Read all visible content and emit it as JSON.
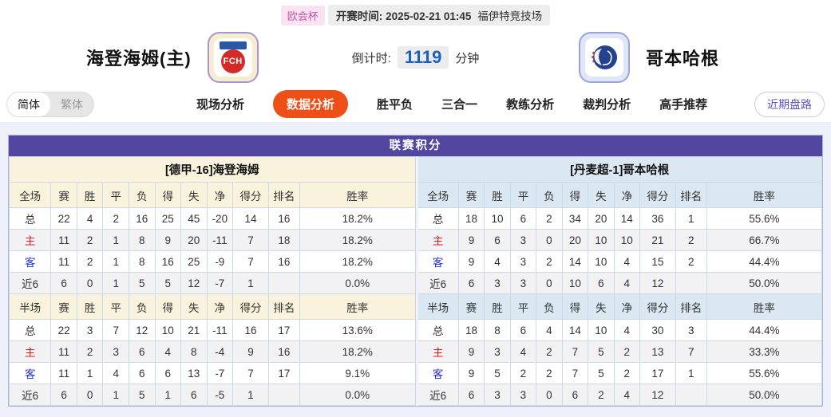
{
  "colors": {
    "title_bar_purple": "#5246a0",
    "active_tab_orange": "#ee4f16",
    "home_side_bg": "#f9f2dc",
    "away_side_bg": "#dbe7f2",
    "home_label_red": "#d42222",
    "away_label_blue": "#2233cc",
    "countdown_blue": "#1b5ec4",
    "competition_pink": "#c457a8",
    "page_bg": "#edf0f8"
  },
  "match_header": {
    "competition_badge": "欧会杯",
    "kickoff_label": "开赛时间:",
    "kickoff_datetime": "2025-02-21 01:45",
    "venue": "福伊特竞技场",
    "home_team": {
      "name": "海登海姆(主)",
      "crest_text": "FCH"
    },
    "away_team": {
      "name": "哥本哈根"
    },
    "countdown": {
      "label": "倒计时:",
      "value": "1119",
      "unit": "分钟"
    }
  },
  "nav": {
    "lang_toggle": {
      "simplified": "简体",
      "traditional": "繁体",
      "active": "简体"
    },
    "tabs": [
      {
        "label": "现场分析",
        "active": false
      },
      {
        "label": "数据分析",
        "active": true
      },
      {
        "label": "胜平负",
        "active": false
      },
      {
        "label": "三合一",
        "active": false
      },
      {
        "label": "教练分析",
        "active": false
      },
      {
        "label": "裁判分析",
        "active": false
      },
      {
        "label": "高手推荐",
        "active": false
      }
    ],
    "recent_trend_button": "近期盘路"
  },
  "league_table": {
    "title": "联赛积分",
    "columns_full": [
      "全场",
      "赛",
      "胜",
      "平",
      "负",
      "得",
      "失",
      "净",
      "得分",
      "排名",
      "胜率"
    ],
    "columns_half": [
      "半场",
      "赛",
      "胜",
      "平",
      "负",
      "得",
      "失",
      "净",
      "得分",
      "排名",
      "胜率"
    ],
    "home": {
      "team_label": "[德甲-16]海登海姆",
      "full_rows": [
        [
          "总",
          "22",
          "4",
          "2",
          "16",
          "25",
          "45",
          "-20",
          "14",
          "16",
          "18.2%"
        ],
        [
          "主",
          "11",
          "2",
          "1",
          "8",
          "9",
          "20",
          "-11",
          "7",
          "18",
          "18.2%"
        ],
        [
          "客",
          "11",
          "2",
          "1",
          "8",
          "16",
          "25",
          "-9",
          "7",
          "16",
          "18.2%"
        ],
        [
          "近6",
          "6",
          "0",
          "1",
          "5",
          "5",
          "12",
          "-7",
          "1",
          "",
          "0.0%"
        ]
      ],
      "half_rows": [
        [
          "总",
          "22",
          "3",
          "7",
          "12",
          "10",
          "21",
          "-11",
          "16",
          "17",
          "13.6%"
        ],
        [
          "主",
          "11",
          "2",
          "3",
          "6",
          "4",
          "8",
          "-4",
          "9",
          "16",
          "18.2%"
        ],
        [
          "客",
          "11",
          "1",
          "4",
          "6",
          "6",
          "13",
          "-7",
          "7",
          "17",
          "9.1%"
        ],
        [
          "近6",
          "6",
          "0",
          "1",
          "5",
          "1",
          "6",
          "-5",
          "1",
          "",
          "0.0%"
        ]
      ]
    },
    "away": {
      "team_label": "[丹麦超-1]哥本哈根",
      "full_rows": [
        [
          "总",
          "18",
          "10",
          "6",
          "2",
          "34",
          "20",
          "14",
          "36",
          "1",
          "55.6%"
        ],
        [
          "主",
          "9",
          "6",
          "3",
          "0",
          "20",
          "10",
          "10",
          "21",
          "2",
          "66.7%"
        ],
        [
          "客",
          "9",
          "4",
          "3",
          "2",
          "14",
          "10",
          "4",
          "15",
          "2",
          "44.4%"
        ],
        [
          "近6",
          "6",
          "3",
          "3",
          "0",
          "10",
          "6",
          "4",
          "12",
          "",
          "50.0%"
        ]
      ],
      "half_rows": [
        [
          "总",
          "18",
          "8",
          "6",
          "4",
          "14",
          "10",
          "4",
          "30",
          "3",
          "44.4%"
        ],
        [
          "主",
          "9",
          "3",
          "4",
          "2",
          "7",
          "5",
          "2",
          "13",
          "7",
          "33.3%"
        ],
        [
          "客",
          "9",
          "5",
          "2",
          "2",
          "7",
          "5",
          "2",
          "17",
          "1",
          "55.6%"
        ],
        [
          "近6",
          "6",
          "3",
          "3",
          "0",
          "6",
          "2",
          "4",
          "12",
          "",
          "50.0%"
        ]
      ]
    }
  }
}
